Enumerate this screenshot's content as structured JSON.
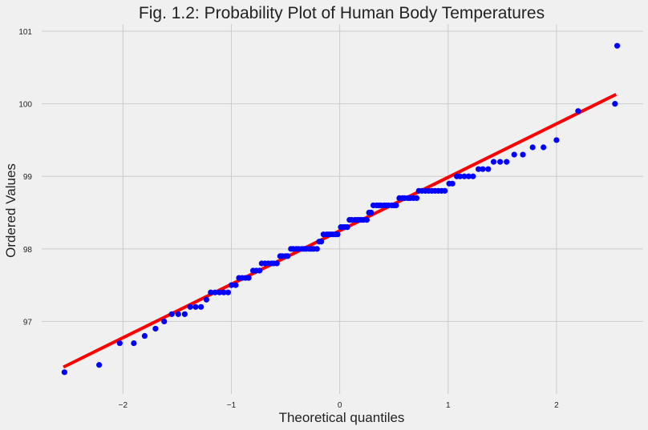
{
  "chart_data": {
    "type": "scatter",
    "title": "Fig. 1.2: Probability Plot of Human Body Temperatures",
    "xlabel": "Theoretical quantiles",
    "ylabel": "Ordered Values",
    "xlim": [
      -2.75,
      2.8
    ],
    "ylim": [
      96.0,
      101.1
    ],
    "x_ticks": [
      "−2",
      "−1",
      "0",
      "1",
      "2"
    ],
    "x_tick_values": [
      -2,
      -1,
      0,
      1,
      2
    ],
    "y_ticks": [
      "97",
      "98",
      "99",
      "100",
      "101"
    ],
    "y_tick_values": [
      97,
      98,
      99,
      100,
      101
    ],
    "grid": true,
    "series": [
      {
        "kind": "points",
        "color": "#0000ff",
        "points": [
          [
            -2.54,
            96.3
          ],
          [
            -2.22,
            96.4
          ],
          [
            -2.03,
            96.7
          ],
          [
            -1.9,
            96.7
          ],
          [
            -1.8,
            96.8
          ],
          [
            -1.7,
            96.9
          ],
          [
            -1.62,
            97.0
          ],
          [
            -1.55,
            97.1
          ],
          [
            -1.49,
            97.1
          ],
          [
            -1.43,
            97.1
          ],
          [
            -1.38,
            97.2
          ],
          [
            -1.33,
            97.2
          ],
          [
            -1.28,
            97.2
          ],
          [
            -1.23,
            97.3
          ],
          [
            -1.19,
            97.4
          ],
          [
            -1.15,
            97.4
          ],
          [
            -1.11,
            97.4
          ],
          [
            -1.07,
            97.4
          ],
          [
            -1.03,
            97.4
          ],
          [
            -1.0,
            97.5
          ],
          [
            -0.96,
            97.5
          ],
          [
            -0.93,
            97.6
          ],
          [
            -0.9,
            97.6
          ],
          [
            -0.87,
            97.6
          ],
          [
            -0.84,
            97.6
          ],
          [
            -0.8,
            97.7
          ],
          [
            -0.77,
            97.7
          ],
          [
            -0.74,
            97.7
          ],
          [
            -0.72,
            97.8
          ],
          [
            -0.69,
            97.8
          ],
          [
            -0.66,
            97.8
          ],
          [
            -0.63,
            97.8
          ],
          [
            -0.61,
            97.8
          ],
          [
            -0.58,
            97.8
          ],
          [
            -0.55,
            97.9
          ],
          [
            -0.53,
            97.9
          ],
          [
            -0.5,
            97.9
          ],
          [
            -0.48,
            97.9
          ],
          [
            -0.45,
            98.0
          ],
          [
            -0.43,
            98.0
          ],
          [
            -0.4,
            98.0
          ],
          [
            -0.38,
            98.0
          ],
          [
            -0.35,
            98.0
          ],
          [
            -0.33,
            98.0
          ],
          [
            -0.31,
            98.0
          ],
          [
            -0.28,
            98.0
          ],
          [
            -0.26,
            98.0
          ],
          [
            -0.24,
            98.0
          ],
          [
            -0.21,
            98.0
          ],
          [
            -0.19,
            98.1
          ],
          [
            -0.17,
            98.1
          ],
          [
            -0.15,
            98.2
          ],
          [
            -0.12,
            98.2
          ],
          [
            -0.1,
            98.2
          ],
          [
            -0.08,
            98.2
          ],
          [
            -0.06,
            98.2
          ],
          [
            -0.04,
            98.2
          ],
          [
            -0.02,
            98.2
          ],
          [
            0.01,
            98.3
          ],
          [
            0.03,
            98.3
          ],
          [
            0.05,
            98.3
          ],
          [
            0.07,
            98.3
          ],
          [
            0.09,
            98.4
          ],
          [
            0.11,
            98.4
          ],
          [
            0.14,
            98.4
          ],
          [
            0.16,
            98.4
          ],
          [
            0.18,
            98.4
          ],
          [
            0.2,
            98.4
          ],
          [
            0.22,
            98.4
          ],
          [
            0.25,
            98.4
          ],
          [
            0.27,
            98.5
          ],
          [
            0.29,
            98.5
          ],
          [
            0.31,
            98.6
          ],
          [
            0.34,
            98.6
          ],
          [
            0.36,
            98.6
          ],
          [
            0.38,
            98.6
          ],
          [
            0.41,
            98.6
          ],
          [
            0.43,
            98.6
          ],
          [
            0.45,
            98.6
          ],
          [
            0.48,
            98.6
          ],
          [
            0.5,
            98.6
          ],
          [
            0.52,
            98.6
          ],
          [
            0.55,
            98.7
          ],
          [
            0.58,
            98.7
          ],
          [
            0.6,
            98.7
          ],
          [
            0.63,
            98.7
          ],
          [
            0.65,
            98.7
          ],
          [
            0.68,
            98.7
          ],
          [
            0.71,
            98.7
          ],
          [
            0.73,
            98.8
          ],
          [
            0.76,
            98.8
          ],
          [
            0.79,
            98.8
          ],
          [
            0.82,
            98.8
          ],
          [
            0.85,
            98.8
          ],
          [
            0.88,
            98.8
          ],
          [
            0.91,
            98.8
          ],
          [
            0.94,
            98.8
          ],
          [
            0.97,
            98.8
          ],
          [
            1.01,
            98.9
          ],
          [
            1.04,
            98.9
          ],
          [
            1.08,
            99.0
          ],
          [
            1.11,
            99.0
          ],
          [
            1.15,
            99.0
          ],
          [
            1.19,
            99.0
          ],
          [
            1.23,
            99.0
          ],
          [
            1.28,
            99.1
          ],
          [
            1.32,
            99.1
          ],
          [
            1.37,
            99.1
          ],
          [
            1.42,
            99.2
          ],
          [
            1.48,
            99.2
          ],
          [
            1.54,
            99.2
          ],
          [
            1.61,
            99.3
          ],
          [
            1.69,
            99.3
          ],
          [
            1.78,
            99.4
          ],
          [
            1.88,
            99.4
          ],
          [
            2.0,
            99.5
          ],
          [
            2.2,
            99.9
          ],
          [
            2.54,
            100.0
          ],
          [
            2.56,
            100.8
          ]
        ]
      },
      {
        "kind": "fit-line",
        "color": "#ff0000",
        "x": [
          -2.55,
          2.55
        ],
        "y": [
          96.37,
          100.13
        ]
      }
    ]
  }
}
